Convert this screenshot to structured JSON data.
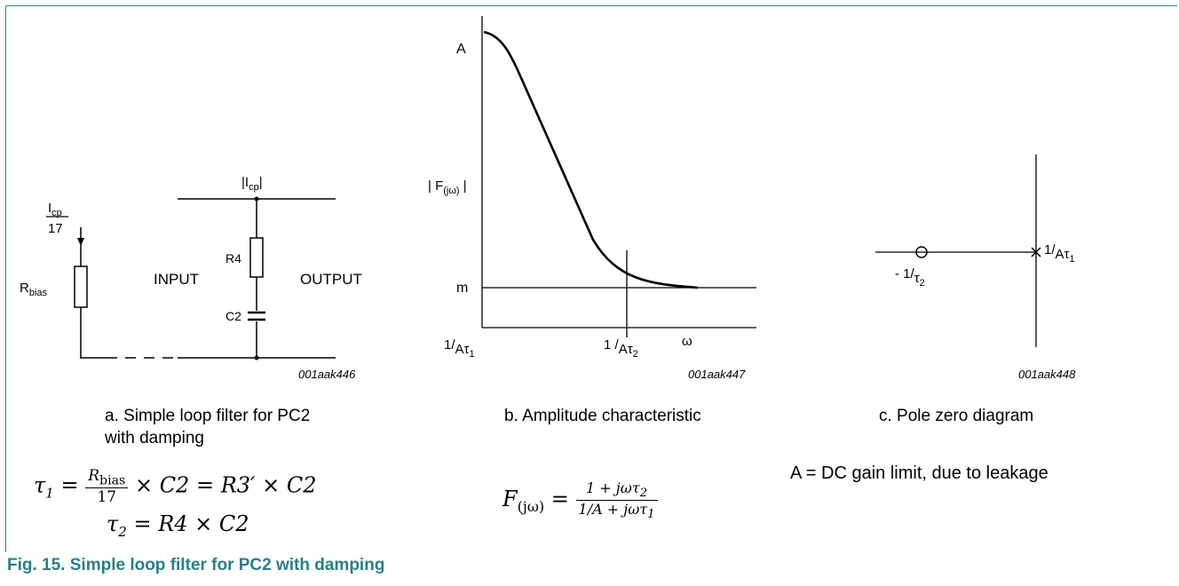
{
  "figure": {
    "caption": "Fig. 15.  Simple loop filter for PC2 with damping",
    "note": "A = DC gain limit, due to leakage"
  },
  "panel_a": {
    "icp_top_label": "|I",
    "icp_top_sub": "cp",
    "icp_top_close": "|",
    "icp_frac_num": "I",
    "icp_frac_num_sub": "cp",
    "icp_frac_den": "17",
    "rbias_label": "R",
    "rbias_sub": "bias",
    "r4_label": "R4",
    "c2_label": "C2",
    "input_label": "INPUT",
    "output_label": "OUTPUT",
    "code": "001aak446",
    "caption_line1": "a. Simple loop filter for PC2",
    "caption_line2": "with damping",
    "eq1_lhs": "τ",
    "eq1_lhs_sub": "1",
    "eq1_frac_num": "R",
    "eq1_frac_num_sub": "bias",
    "eq1_frac_den": "17",
    "eq1_rest": " × C2 = R3′ × C2",
    "eq2_lhs": "τ",
    "eq2_lhs_sub": "2",
    "eq2_rest": " = R4 × C2"
  },
  "panel_b": {
    "y_top_label": "A",
    "y_label": "| F",
    "y_label_sub": "(jω)",
    "y_label_close": " |",
    "m_label": "m",
    "x1_label": "1/",
    "x1_sub_a": "Aτ",
    "x1_sub_n": "1",
    "x2_label": "1 /",
    "x2_sub_a": "Aτ",
    "x2_sub_n": "2",
    "omega_label": "ω",
    "code": "001aak447",
    "caption": "b. Amplitude characteristic",
    "eq_lhs": "F",
    "eq_lhs_sub": "(jω)",
    "eq_num": "1 + jωτ",
    "eq_num_sub": "2",
    "eq_den": "1/A + jωτ",
    "eq_den_sub": "1"
  },
  "panel_c": {
    "zero_label": "- 1/",
    "zero_sub": "τ",
    "zero_sub_n": "2",
    "pole_label": "1/",
    "pole_sub": "Aτ",
    "pole_sub_n": "1",
    "code": "001aak448",
    "caption": "c. Pole zero diagram"
  }
}
